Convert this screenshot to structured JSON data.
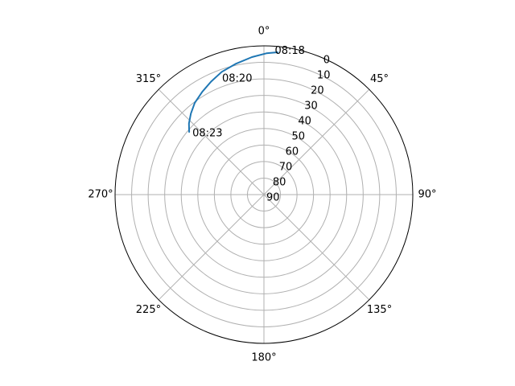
{
  "chart_data": {
    "type": "line",
    "projection": "polar",
    "theta_zero_location": "N",
    "theta_direction": "clockwise",
    "theta_tick_labels": [
      "0°",
      "45°",
      "90°",
      "135°",
      "180°",
      "225°",
      "270°",
      "315°"
    ],
    "theta_tick_values_deg": [
      0,
      45,
      90,
      135,
      180,
      225,
      270,
      315
    ],
    "r_tick_labels": [
      "0",
      "10",
      "20",
      "30",
      "40",
      "50",
      "60",
      "70",
      "80",
      "90"
    ],
    "r_tick_values": [
      0,
      10,
      20,
      30,
      40,
      50,
      60,
      70,
      80,
      90
    ],
    "r_inverted": true,
    "r_range": [
      0,
      90
    ],
    "r_label_angle_deg": 22.5,
    "grid": true,
    "series": [
      {
        "color": "#1f77b4",
        "theta_deg": [
          5.5,
          1.0,
          -5.0,
          -12.0,
          -19.0,
          -25.0,
          -31.0,
          -37.0,
          -42.0,
          -46.5,
          -50.0
        ],
        "r": [
          3.5,
          4.5,
          6.5,
          9.0,
          11.5,
          14.5,
          17.5,
          20.5,
          24.0,
          27.5,
          31.0
        ]
      }
    ],
    "annotations": [
      {
        "text": "08:18",
        "theta_deg": 3.0,
        "r": 2.0
      },
      {
        "text": "08:20",
        "theta_deg": -21.0,
        "r": 14.0
      },
      {
        "text": "08:23",
        "theta_deg": -50.0,
        "r": 31.0
      }
    ]
  }
}
